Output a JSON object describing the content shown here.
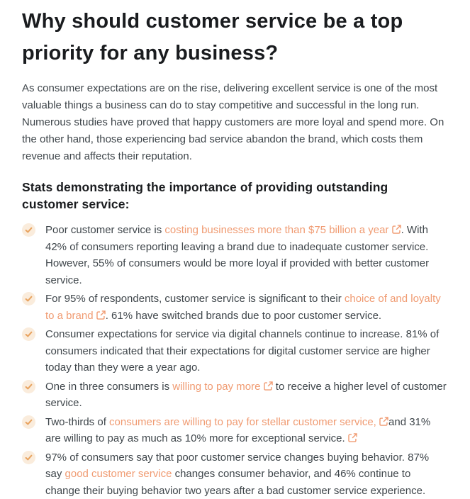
{
  "article": {
    "title": "Why should customer service be a top priority for any business?",
    "title_lines": [
      "Why should customer service be a top",
      "priority for any business?"
    ],
    "intro": "As consumer expectations are on the rise, delivering excellent service is one of the most valuable things a business can do to stay competitive and successful in the long run. Numerous studies have proved that happy customers are more loyal and spend more. On the other hand, those experiencing bad service abandon the brand, which costs them revenue and affects their reputation.",
    "subheading_lines": [
      "Stats demonstrating the importance of providing outstanding",
      "customer service:"
    ],
    "stats": [
      {
        "segments": [
          {
            "type": "text",
            "text": "Poor customer service is "
          },
          {
            "type": "link",
            "text": "costing businesses more than $75 billion a year "
          },
          {
            "type": "ext"
          },
          {
            "type": "text",
            "text": ". With 42% of consumers reporting leaving a brand due to inadequate customer service. However, 55% of consumers would be more loyal if provided with better customer service."
          }
        ]
      },
      {
        "segments": [
          {
            "type": "text",
            "text": "For 95% of respondents, customer service is significant to their "
          },
          {
            "type": "link",
            "text": "choice of and loyalty to a brand "
          },
          {
            "type": "ext"
          },
          {
            "type": "text",
            "text": ". 61% have switched brands due to poor customer service."
          }
        ]
      },
      {
        "segments": [
          {
            "type": "text",
            "text": "Consumer expectations for service via digital channels continue to increase. 81% of consumers indicated that their expectations for digital customer service are higher today than they were a year ago."
          }
        ]
      },
      {
        "segments": [
          {
            "type": "text",
            "text": "One in three consumers is "
          },
          {
            "type": "link",
            "text": "willing to pay more "
          },
          {
            "type": "ext"
          },
          {
            "type": "text",
            "text": " to receive a higher level of customer service."
          }
        ]
      },
      {
        "segments": [
          {
            "type": "text",
            "text": "Two-thirds of "
          },
          {
            "type": "link",
            "text": "consumers are willing to pay for stellar customer service, "
          },
          {
            "type": "ext"
          },
          {
            "type": "text",
            "text": "and 31% are willing to pay as much as 10% more for exceptional service.  "
          },
          {
            "type": "ext"
          }
        ]
      },
      {
        "segments": [
          {
            "type": "text",
            "text": "97% of consumers say that poor customer service changes buying behavior. 87% say "
          },
          {
            "type": "link",
            "text": "good customer service"
          },
          {
            "type": "text",
            "text": " changes consumer behavior, and 46% continue to change their buying behavior two years after a bad customer service experience."
          }
        ]
      }
    ]
  },
  "icons": {
    "list_bullet": "check-icon",
    "link_suffix": "external-link-icon"
  },
  "colors": {
    "heading": "#1a1c1f",
    "body": "#3f464b",
    "link": "#f09b72",
    "check": "#e8a35f",
    "check_bg": "#faecdc"
  }
}
